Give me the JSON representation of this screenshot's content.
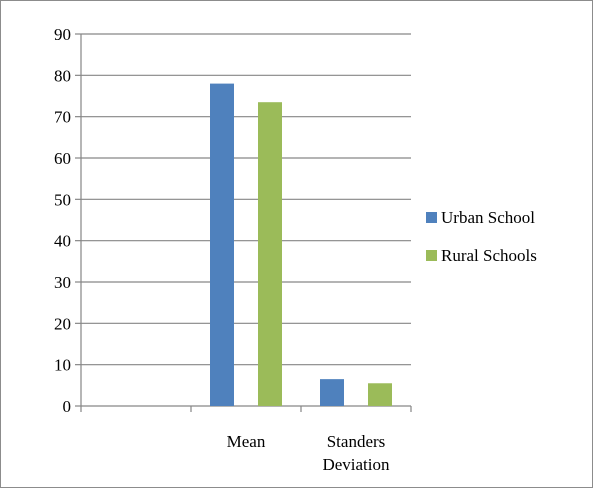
{
  "chart_data": {
    "type": "bar",
    "categories": [
      "",
      "Mean",
      "Standers Deviation"
    ],
    "category_lines": [
      [
        ""
      ],
      [
        "Mean"
      ],
      [
        "Standers",
        "Deviation"
      ]
    ],
    "series": [
      {
        "name": "Urban School",
        "color": "#4f81bd",
        "values": [
          null,
          78,
          6.5
        ]
      },
      {
        "name": "Rural Schools",
        "color": "#9bbb59",
        "values": [
          null,
          73.5,
          5.5
        ]
      }
    ],
    "ylim": [
      0,
      90
    ],
    "yticks": [
      0,
      10,
      20,
      30,
      40,
      50,
      60,
      70,
      80,
      90
    ],
    "grid": true,
    "legend_position": "right",
    "title": "",
    "xlabel": "",
    "ylabel": ""
  }
}
